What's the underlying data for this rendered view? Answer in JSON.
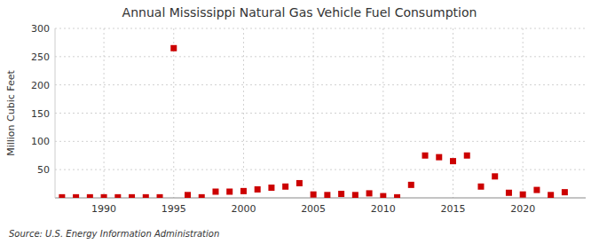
{
  "chart_data": {
    "type": "scatter",
    "title": "Annual Mississippi Natural Gas Vehicle Fuel Consumption",
    "y_label": "Million Cubic Feet",
    "annotation": "Source: U.S. Energy Information Administration",
    "x": [
      1987,
      1988,
      1989,
      1990,
      1991,
      1992,
      1993,
      1994,
      1995,
      1996,
      1997,
      1998,
      1999,
      2000,
      2001,
      2002,
      2003,
      2004,
      2005,
      2006,
      2007,
      2008,
      2009,
      2010,
      2011,
      2012,
      2013,
      2014,
      2015,
      2016,
      2017,
      2018,
      2019,
      2020,
      2021,
      2022,
      2023
    ],
    "values": [
      1,
      1,
      1,
      1,
      1,
      1,
      1,
      1,
      265,
      5,
      1,
      11,
      11,
      12,
      15,
      18,
      20,
      26,
      6,
      5,
      7,
      5,
      8,
      3,
      1,
      23,
      75,
      72,
      65,
      75,
      20,
      38,
      9,
      6,
      14,
      5,
      10
    ],
    "color": "#cc0000",
    "marker": "square",
    "xlim": [
      1986.5,
      2024.5
    ],
    "xticks": [
      1990,
      1995,
      2000,
      2005,
      2010,
      2015,
      2020
    ],
    "ylim": [
      0,
      300
    ],
    "yticks": [
      50,
      100,
      150,
      200,
      250,
      300
    ],
    "grid": true
  }
}
